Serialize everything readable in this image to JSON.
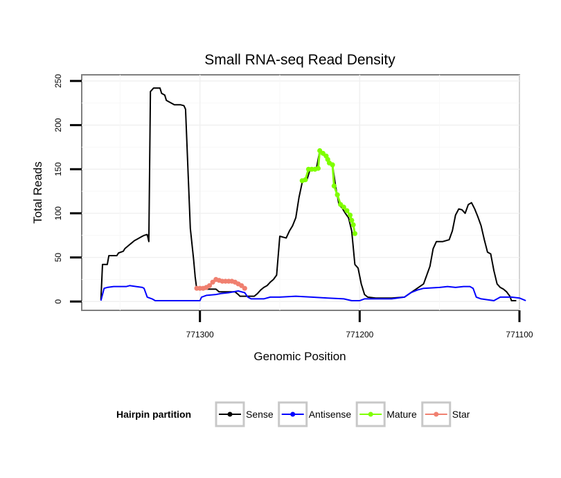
{
  "chart_data": {
    "type": "line",
    "title": "Small RNA-seq Read Density",
    "xlabel": "Genomic Position",
    "ylabel": "Total Reads",
    "xlim": [
      771374,
      771100
    ],
    "ylim": [
      -10,
      257
    ],
    "x_reversed": true,
    "grid": true,
    "x_ticks": [
      771300,
      771200,
      771100
    ],
    "x_tick_labels": [
      "771300",
      "771200",
      "771100"
    ],
    "y_ticks": [
      0,
      50,
      100,
      150,
      200,
      250
    ],
    "y_tick_labels": [
      "0",
      "50",
      "100",
      "150",
      "200",
      "250"
    ],
    "legend": {
      "title": "Hairpin partition",
      "position": "bottom",
      "entries": [
        "Sense",
        "Antisense",
        "Mature",
        "Star"
      ]
    },
    "series": [
      {
        "name": "Sense",
        "color": "#000000",
        "style": "line",
        "points": [
          [
            771362,
            2
          ],
          [
            771361,
            42
          ],
          [
            771358,
            42
          ],
          [
            771357,
            52
          ],
          [
            771352,
            52
          ],
          [
            771351,
            55
          ],
          [
            771348,
            57
          ],
          [
            771347,
            60
          ],
          [
            771345,
            63
          ],
          [
            771343,
            66
          ],
          [
            771341,
            69
          ],
          [
            771339,
            71
          ],
          [
            771337,
            73
          ],
          [
            771335,
            75
          ],
          [
            771333,
            76
          ],
          [
            771332,
            68
          ],
          [
            771331,
            238
          ],
          [
            771329,
            242
          ],
          [
            771325,
            242
          ],
          [
            771324,
            236
          ],
          [
            771322,
            234
          ],
          [
            771321,
            228
          ],
          [
            771318,
            225
          ],
          [
            771316,
            223
          ],
          [
            771312,
            223
          ],
          [
            771310,
            222
          ],
          [
            771309,
            218
          ],
          [
            771306,
            83
          ],
          [
            771304,
            48
          ],
          [
            771303,
            28
          ],
          [
            771302,
            14
          ],
          [
            771290,
            14
          ],
          [
            771288,
            11
          ],
          [
            771278,
            11
          ],
          [
            771276,
            8
          ],
          [
            771275,
            6
          ],
          [
            771266,
            6
          ],
          [
            771264,
            9
          ],
          [
            771262,
            13
          ],
          [
            771260,
            16
          ],
          [
            771258,
            18
          ],
          [
            771256,
            22
          ],
          [
            771254,
            25
          ],
          [
            771252,
            30
          ],
          [
            771250,
            74
          ],
          [
            771248,
            73
          ],
          [
            771246,
            72
          ],
          [
            771244,
            80
          ],
          [
            771242,
            86
          ],
          [
            771240,
            95
          ],
          [
            771238,
            118
          ],
          [
            771236,
            135
          ],
          [
            771233,
            138
          ],
          [
            771231,
            150
          ],
          [
            771229,
            150
          ],
          [
            771227,
            152
          ],
          [
            771225,
            171
          ],
          [
            771223,
            167
          ],
          [
            771221,
            163
          ],
          [
            771219,
            157
          ],
          [
            771217,
            155
          ],
          [
            771215,
            130
          ],
          [
            771213,
            110
          ],
          [
            771211,
            106
          ],
          [
            771209,
            100
          ],
          [
            771207,
            95
          ],
          [
            771205,
            80
          ],
          [
            771203,
            42
          ],
          [
            771201,
            38
          ],
          [
            771199,
            20
          ],
          [
            771197,
            8
          ],
          [
            771195,
            5
          ],
          [
            771190,
            4
          ],
          [
            771180,
            4
          ],
          [
            771172,
            5
          ],
          [
            771168,
            10
          ],
          [
            771164,
            15
          ],
          [
            771160,
            20
          ],
          [
            771158,
            30
          ],
          [
            771156,
            40
          ],
          [
            771154,
            60
          ],
          [
            771152,
            68
          ],
          [
            771148,
            68
          ],
          [
            771144,
            70
          ],
          [
            771142,
            80
          ],
          [
            771140,
            98
          ],
          [
            771138,
            105
          ],
          [
            771136,
            104
          ],
          [
            771134,
            100
          ],
          [
            771132,
            110
          ],
          [
            771130,
            112
          ],
          [
            771128,
            105
          ],
          [
            771126,
            96
          ],
          [
            771124,
            86
          ],
          [
            771122,
            70
          ],
          [
            771120,
            56
          ],
          [
            771118,
            54
          ],
          [
            771116,
            35
          ],
          [
            771114,
            20
          ],
          [
            771112,
            16
          ],
          [
            771110,
            14
          ],
          [
            771108,
            11
          ],
          [
            771106,
            6
          ],
          [
            771105,
            1
          ],
          [
            771102,
            1
          ]
        ]
      },
      {
        "name": "Antisense",
        "color": "#0000ff",
        "style": "line",
        "points": [
          [
            771362,
            1
          ],
          [
            771361,
            8
          ],
          [
            771360,
            15
          ],
          [
            771358,
            16
          ],
          [
            771354,
            17
          ],
          [
            771346,
            17
          ],
          [
            771344,
            18
          ],
          [
            771340,
            17
          ],
          [
            771336,
            16
          ],
          [
            771335,
            15
          ],
          [
            771333,
            5
          ],
          [
            771330,
            3
          ],
          [
            771328,
            1
          ],
          [
            771300,
            1
          ],
          [
            771299,
            5
          ],
          [
            771296,
            7
          ],
          [
            771290,
            8
          ],
          [
            771287,
            9
          ],
          [
            771282,
            10
          ],
          [
            771276,
            12
          ],
          [
            771272,
            10
          ],
          [
            771270,
            5
          ],
          [
            771268,
            3
          ],
          [
            771260,
            3
          ],
          [
            771256,
            5
          ],
          [
            771250,
            5
          ],
          [
            771240,
            6
          ],
          [
            771230,
            5
          ],
          [
            771220,
            4
          ],
          [
            771210,
            3
          ],
          [
            771205,
            1
          ],
          [
            771200,
            1
          ],
          [
            771197,
            3
          ],
          [
            771190,
            3
          ],
          [
            771180,
            3
          ],
          [
            771172,
            5
          ],
          [
            771168,
            10
          ],
          [
            771164,
            13
          ],
          [
            771160,
            15
          ],
          [
            771150,
            16
          ],
          [
            771145,
            17
          ],
          [
            771140,
            16
          ],
          [
            771135,
            17
          ],
          [
            771131,
            17
          ],
          [
            771129,
            15
          ],
          [
            771127,
            5
          ],
          [
            771124,
            3
          ],
          [
            771116,
            1
          ],
          [
            771112,
            5
          ],
          [
            771105,
            5
          ],
          [
            771100,
            4
          ],
          [
            771096,
            1
          ]
        ]
      },
      {
        "name": "Mature",
        "color": "#7fff00",
        "style": "points",
        "points": [
          [
            771236,
            137
          ],
          [
            771234,
            138
          ],
          [
            771232,
            150
          ],
          [
            771230,
            150
          ],
          [
            771228,
            150
          ],
          [
            771226,
            151
          ],
          [
            771225,
            171
          ],
          [
            771223,
            168
          ],
          [
            771221,
            165
          ],
          [
            771220,
            161
          ],
          [
            771219,
            157
          ],
          [
            771217,
            155
          ],
          [
            771216,
            131
          ],
          [
            771214,
            121
          ],
          [
            771212,
            110
          ],
          [
            771210,
            107
          ],
          [
            771208,
            103
          ],
          [
            771206,
            98
          ],
          [
            771205,
            92
          ],
          [
            771204,
            87
          ],
          [
            771203,
            77
          ]
        ]
      },
      {
        "name": "Star",
        "color": "#f08070",
        "style": "points",
        "points": [
          [
            771302,
            15
          ],
          [
            771300,
            15
          ],
          [
            771298,
            15
          ],
          [
            771296,
            16
          ],
          [
            771294,
            18
          ],
          [
            771292,
            22
          ],
          [
            771290,
            25
          ],
          [
            771288,
            24
          ],
          [
            771286,
            23
          ],
          [
            771284,
            23
          ],
          [
            771282,
            23
          ],
          [
            771280,
            23
          ],
          [
            771278,
            22
          ],
          [
            771276,
            20
          ],
          [
            771274,
            18
          ],
          [
            771272,
            15
          ]
        ]
      }
    ]
  }
}
